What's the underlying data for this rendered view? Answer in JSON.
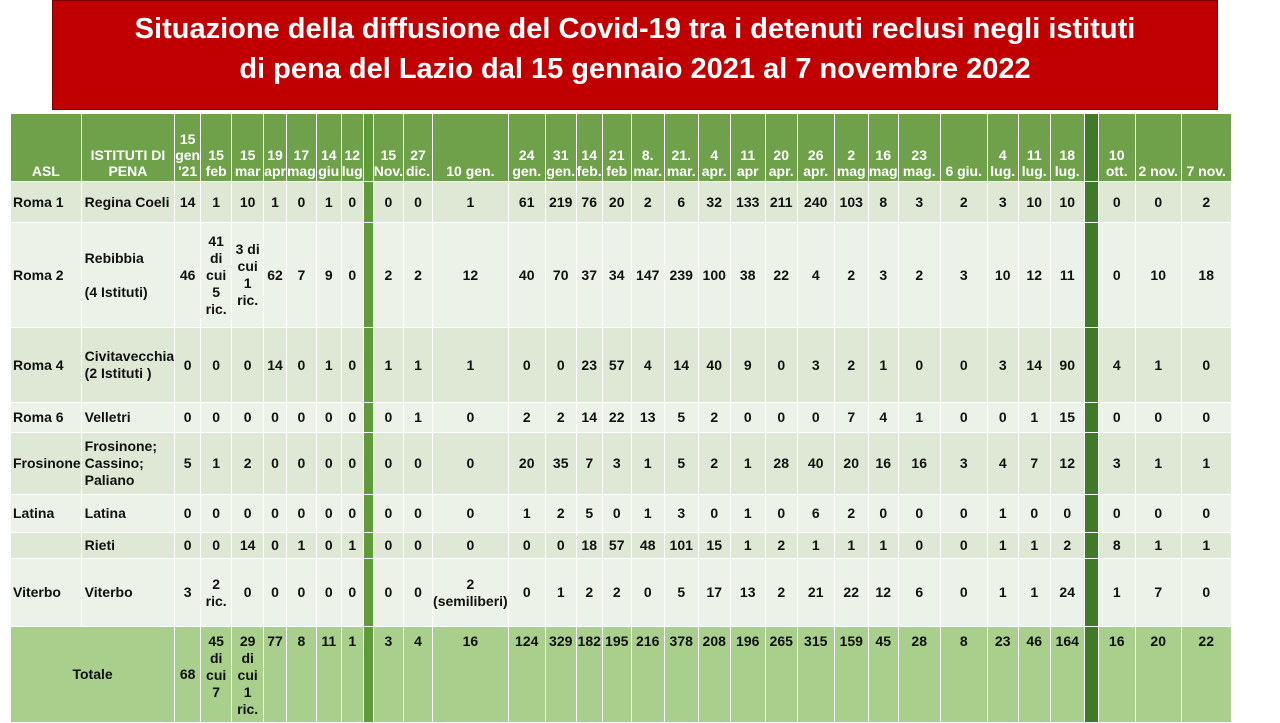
{
  "title": {
    "line1": "Situazione della diffusione del Covid-19 tra i detenuti reclusi negli istituti",
    "line2": "di pena del Lazio dal 15 gennaio 2021 al 7 novembre 2022"
  },
  "headers": {
    "asl": "ASL",
    "istituti": "ISTITUTI DI PENA",
    "dates": [
      "15 gen '21",
      "15 feb",
      "15 mar",
      "19 apr",
      "17 mag",
      "14 giu",
      "12 lug",
      "15 Nov.",
      "27 dic.",
      "10 gen.",
      "24 gen.",
      "31 gen.",
      "14 feb.",
      "21 feb",
      "8. mar.",
      "21. mar.",
      "4 apr.",
      "11 apr",
      "20 apr.",
      "26 apr.",
      "2 mag",
      "16 mag",
      "23 mag.",
      "6 giu.",
      "4 lug.",
      "11 lug.",
      "18 lug.",
      "10 ott.",
      "2 nov.",
      "7 nov."
    ]
  },
  "rows": [
    {
      "asl": "Roma 1",
      "istituto": "Regina Coeli",
      "values": [
        "14",
        "1",
        "10",
        "1",
        "0",
        "1",
        "0",
        "0",
        "0",
        "1",
        "61",
        "219",
        "76",
        "20",
        "2",
        "6",
        "32",
        "133",
        "211",
        "240",
        "103",
        "8",
        "3",
        "2",
        "3",
        "10",
        "10",
        "0",
        "0",
        "2"
      ]
    },
    {
      "asl": "Roma 2",
      "istituto": "Rebibbia\n\n(4 Istituti)",
      "values": [
        "46",
        "41 di cui 5 ric.",
        "3 di cui 1 ric.",
        "62",
        "7",
        "9",
        "0",
        "2",
        "2",
        "12",
        "40",
        "70",
        "37",
        "34",
        "147",
        "239",
        "100",
        "38",
        "22",
        "4",
        "2",
        "3",
        "2",
        "3",
        "10",
        "12",
        "11",
        "0",
        "10",
        "18"
      ]
    },
    {
      "asl": "Roma 4",
      "istituto": "Civitavecchia\n(2 Istituti )",
      "values": [
        "0",
        "0",
        "0",
        "14",
        "0",
        "1",
        "0",
        "1",
        "1",
        "1",
        "0",
        "0",
        "23",
        "57",
        "4",
        "14",
        "40",
        "9",
        "0",
        "3",
        "2",
        "1",
        "0",
        "0",
        "3",
        "14",
        "90",
        "4",
        "1",
        "0"
      ]
    },
    {
      "asl": "Roma 6",
      "istituto": "Velletri",
      "values": [
        "0",
        "0",
        "0",
        "0",
        "0",
        "0",
        "0",
        "0",
        "1",
        "0",
        "2",
        "2",
        "14",
        "22",
        "13",
        "5",
        "2",
        "0",
        "0",
        "0",
        "7",
        "4",
        "1",
        "0",
        "0",
        "1",
        "15",
        "0",
        "0",
        "0"
      ]
    },
    {
      "asl": "Frosinone",
      "istituto": "Frosinone; Cassino; Paliano",
      "values": [
        "5",
        "1",
        "2",
        "0",
        "0",
        "0",
        "0",
        "0",
        "0",
        "0",
        "20",
        "35",
        "7",
        "3",
        "1",
        "5",
        "2",
        "1",
        "28",
        "40",
        "20",
        "16",
        "16",
        "3",
        "4",
        "7",
        "12",
        "3",
        "1",
        "1"
      ]
    },
    {
      "asl": "Latina",
      "istituto": "Latina",
      "values": [
        "0",
        "0",
        "0",
        "0",
        "0",
        "0",
        "0",
        "0",
        "0",
        "0",
        "1",
        "2",
        "5",
        "0",
        "1",
        "3",
        "0",
        "1",
        "0",
        "6",
        "2",
        "0",
        "0",
        "0",
        "1",
        "0",
        "0",
        "0",
        "0",
        "0"
      ]
    },
    {
      "asl": "",
      "istituto": "Rieti",
      "values": [
        "0",
        "0",
        "14",
        "0",
        "1",
        "0",
        "1",
        "0",
        "0",
        "0",
        "0",
        "0",
        "18",
        "57",
        "48",
        "101",
        "15",
        "1",
        "2",
        "1",
        "1",
        "1",
        "0",
        "0",
        "1",
        "1",
        "2",
        "8",
        "1",
        "1"
      ]
    },
    {
      "asl": "Viterbo",
      "istituto": "Viterbo",
      "values": [
        "3",
        "2 ric.",
        "0",
        "0",
        "0",
        "0",
        "0",
        "0",
        "0",
        "2 (semiliberi)",
        "0",
        "1",
        "2",
        "2",
        "0",
        "5",
        "17",
        "13",
        "2",
        "21",
        "22",
        "12",
        "6",
        "0",
        "1",
        "1",
        "24",
        "1",
        "7",
        "0"
      ]
    }
  ],
  "totale": {
    "label": "Totale",
    "values": [
      "68",
      "45 di cui 7",
      "29 di cui 1 ric.",
      "77",
      "8",
      "11",
      "1",
      "3",
      "4",
      "16",
      "124",
      "329",
      "182",
      "195",
      "216",
      "378",
      "208",
      "196",
      "265",
      "315",
      "159",
      "45",
      "28",
      "8",
      "23",
      "46",
      "164",
      "16",
      "20",
      "22"
    ]
  },
  "colors": {
    "title_bg": "#c00000",
    "header_bg": "#6fa14a",
    "row_a": "#dfe8d4",
    "row_b": "#edf2e8",
    "total_bg": "#a9cf8c"
  }
}
